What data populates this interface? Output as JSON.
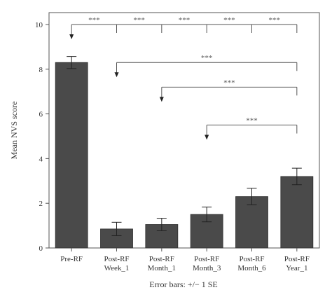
{
  "chart_data": {
    "type": "bar",
    "title": "",
    "xlabel": "",
    "ylabel": "Mean NVS score",
    "ylim": [
      0,
      10
    ],
    "yticks": [
      "0",
      "2",
      "4",
      "6",
      "8",
      "10"
    ],
    "categories": [
      [
        "Pre-RF"
      ],
      [
        "Post-RF",
        "Week_1"
      ],
      [
        "Post-RF",
        "Month_1"
      ],
      [
        "Post-RF",
        "Month_3"
      ],
      [
        "Post-RF",
        "Month_6"
      ],
      [
        "Post-RF",
        "Year_1"
      ]
    ],
    "values": [
      8.3,
      0.85,
      1.05,
      1.5,
      2.3,
      3.2
    ],
    "se": [
      0.27,
      0.3,
      0.28,
      0.33,
      0.37,
      0.37
    ],
    "bar_color": "#4a4a4a",
    "grid": false,
    "footnote": "Error bars: +/− 1 SE",
    "comparisons": [
      {
        "from": 0,
        "to": [
          1,
          2,
          3,
          4,
          5
        ],
        "level": 10,
        "label": "***"
      },
      {
        "from": 1,
        "to": [
          5
        ],
        "level": 8.3,
        "label": "***"
      },
      {
        "from": 2,
        "to": [
          5
        ],
        "level": 7.2,
        "label": "***"
      },
      {
        "from": 3,
        "to": [
          5
        ],
        "level": 5.5,
        "label": "***"
      }
    ]
  }
}
